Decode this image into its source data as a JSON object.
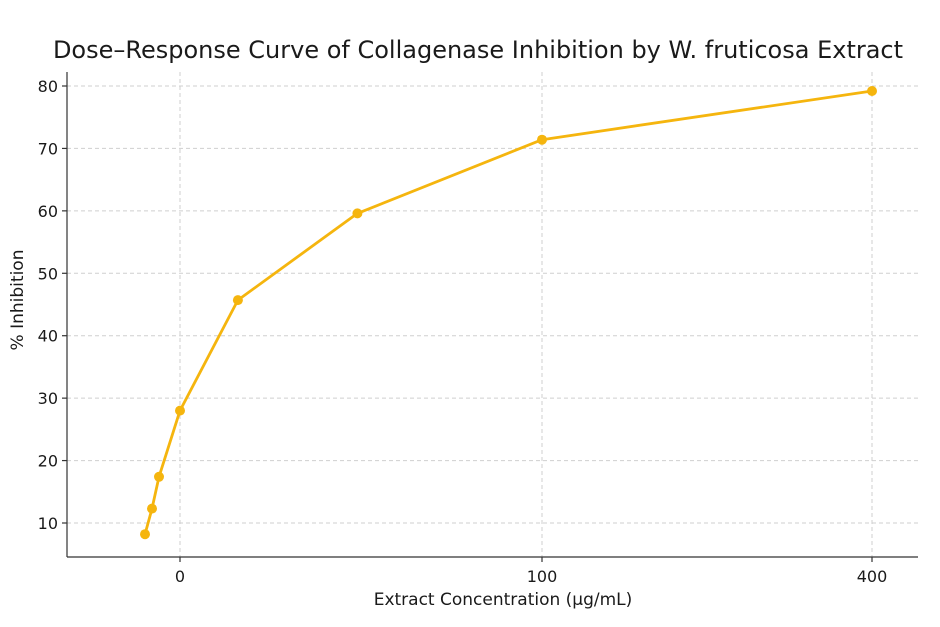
{
  "chart_data": {
    "type": "line",
    "title": "Dose–Response Curve of Collagenase Inhibition by W. fruticosa Extract",
    "xlabel": "Extract Concentration (μg/mL)",
    "ylabel": "% Inhibition",
    "x_ticks": [
      "0",
      "100",
      "400"
    ],
    "x_tick_values": [
      0,
      100,
      400
    ],
    "y_ticks": [
      10,
      20,
      30,
      40,
      50,
      60,
      70,
      80
    ],
    "ylim": [
      5,
      83
    ],
    "grid": true,
    "series": [
      {
        "x": [
          -10,
          -8,
          -6,
          0,
          16,
          49,
          100,
          400
        ],
        "values": [
          8.2,
          12.3,
          17.4,
          28.0,
          45.7,
          59.6,
          71.4,
          79.2
        ],
        "color": "#f5b50e"
      }
    ]
  }
}
